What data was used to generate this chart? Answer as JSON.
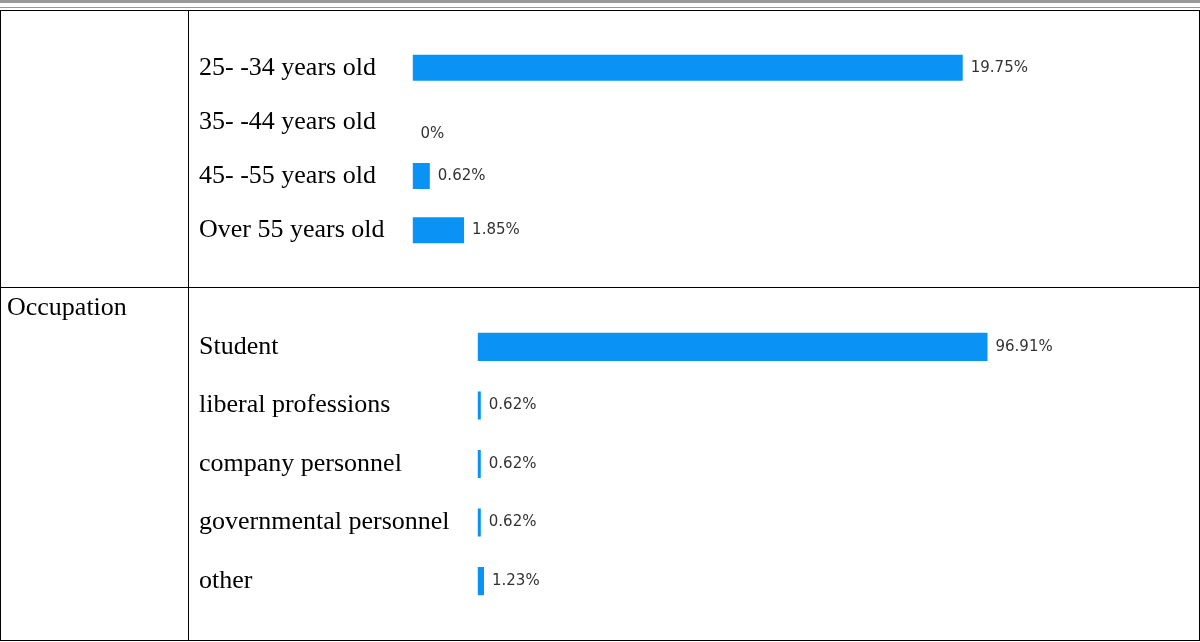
{
  "chart_data": [
    {
      "type": "bar",
      "orientation": "horizontal",
      "categories": [
        "25- -34 years old",
        "35- -44 years old",
        "45- -55 years old",
        "Over 55 years old"
      ],
      "values": [
        19.75,
        0,
        0.62,
        1.85
      ],
      "value_labels": [
        "19.75%",
        "0%",
        "0.62%",
        "1.85%"
      ],
      "color": "#0a93f5",
      "tick_labels": "y",
      "grid": false,
      "legend": false
    },
    {
      "type": "bar",
      "orientation": "horizontal",
      "title": "Occupation",
      "categories": [
        "Student",
        "liberal professions",
        "company personnel",
        "governmental personnel",
        "other"
      ],
      "values": [
        96.91,
        0.62,
        0.62,
        0.62,
        1.23
      ],
      "value_labels": [
        "96.91%",
        "0.62%",
        "0.62%",
        "0.62%",
        "1.23%"
      ],
      "color": "#0a93f5",
      "tick_labels": "y",
      "grid": false,
      "legend": false
    }
  ]
}
